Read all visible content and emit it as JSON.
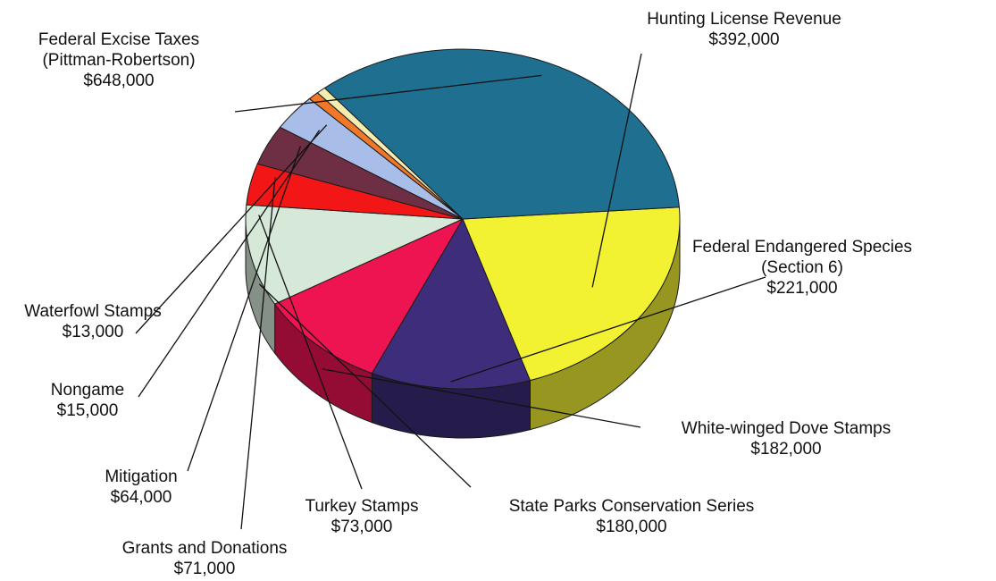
{
  "chart_data": {
    "type": "pie",
    "three_d": true,
    "title": "",
    "slices": [
      {
        "label_lines": [
          "Hunting License Revenue"
        ],
        "amount": "$392,000",
        "value": 392000,
        "color": "#f2f233"
      },
      {
        "label_lines": [
          "Federal Endangered Species",
          "(Section 6)"
        ],
        "amount": "$221,000",
        "value": 221000,
        "color": "#3d2d7a"
      },
      {
        "label_lines": [
          "White-winged Dove Stamps"
        ],
        "amount": "$182,000",
        "value": 182000,
        "color": "#ee1452"
      },
      {
        "label_lines": [
          "State Parks Conservation Series"
        ],
        "amount": "$180,000",
        "value": 180000,
        "color": "#d6e8d8"
      },
      {
        "label_lines": [
          "Turkey Stamps"
        ],
        "amount": "$73,000",
        "value": 73000,
        "color": "#f21616"
      },
      {
        "label_lines": [
          "Grants and Donations"
        ],
        "amount": "$71,000",
        "value": 71000,
        "color": "#6e2e44"
      },
      {
        "label_lines": [
          "Mitigation"
        ],
        "amount": "$64,000",
        "value": 64000,
        "color": "#a8bde8"
      },
      {
        "label_lines": [
          "Nongame"
        ],
        "amount": "$15,000",
        "value": 15000,
        "color": "#f07828"
      },
      {
        "label_lines": [
          "Waterfowl Stamps"
        ],
        "amount": "$13,000",
        "value": 13000,
        "color": "#f5ecb0"
      },
      {
        "label_lines": [
          "Federal Excise Taxes",
          "(Pittman-Robertson)"
        ],
        "amount": "$648,000",
        "value": 648000,
        "color": "#1f6f91"
      }
    ]
  }
}
